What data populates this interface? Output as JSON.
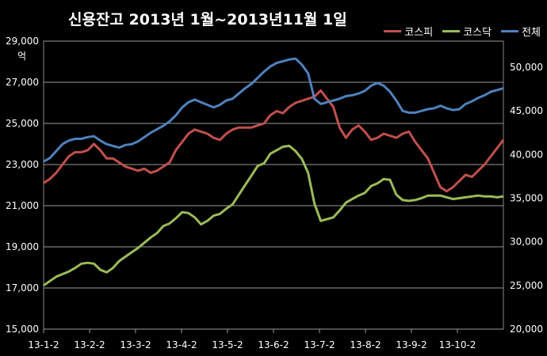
{
  "chart_data": {
    "type": "line",
    "title": "신용잔고 2013년 1월~2013년11월 1일",
    "left_unit": "억",
    "y_left": {
      "min": 15000,
      "max": 29000,
      "ticks": [
        "15,000",
        "17,000",
        "19,000",
        "21,000",
        "23,000",
        "25,000",
        "27,000",
        "29,000"
      ]
    },
    "y_right": {
      "min": 20000,
      "max": 53000,
      "ticks": [
        "20,000",
        "25,000",
        "30,000",
        "35,000",
        "40,000",
        "45,000",
        "50,000"
      ]
    },
    "x_ticks": [
      "13-1-2",
      "13-2-2",
      "13-3-2",
      "13-4-2",
      "13-5-2",
      "13-6-2",
      "13-7-2",
      "13-8-2",
      "13-9-2",
      "13-10-2"
    ],
    "grid": true,
    "legend_position": "top-right",
    "series": [
      {
        "name": "코스피",
        "axis": "left",
        "color": "#c0504d",
        "values": [
          22100,
          22300,
          22600,
          23000,
          23400,
          23600,
          23600,
          23700,
          24000,
          23700,
          23300,
          23300,
          23100,
          22900,
          22800,
          22700,
          22800,
          22600,
          22700,
          22900,
          23100,
          23700,
          24100,
          24500,
          24700,
          24600,
          24500,
          24300,
          24200,
          24500,
          24700,
          24800,
          24800,
          24800,
          24900,
          25000,
          25400,
          25600,
          25500,
          25800,
          26000,
          26100,
          26200,
          26300,
          26600,
          26200,
          25800,
          24800,
          24300,
          24700,
          24900,
          24600,
          24200,
          24300,
          24500,
          24400,
          24300,
          24500,
          24600,
          24100,
          23700,
          23300,
          22600,
          21900,
          21700,
          21900,
          22200,
          22500,
          22400,
          22700,
          23000,
          23400,
          23800,
          24200
        ]
      },
      {
        "name": "코스닥",
        "axis": "right",
        "color": "#9bbb59",
        "values": [
          25000,
          25500,
          26000,
          26300,
          26600,
          27000,
          27500,
          27600,
          27500,
          26800,
          26500,
          27000,
          27800,
          28300,
          28800,
          29300,
          29900,
          30500,
          31000,
          31800,
          32100,
          32700,
          33400,
          33300,
          32800,
          32000,
          32400,
          33000,
          33200,
          33800,
          34300,
          35400,
          36500,
          37600,
          38700,
          39000,
          40100,
          40500,
          40900,
          41000,
          40400,
          39500,
          37900,
          34400,
          32400,
          32600,
          32800,
          33600,
          34500,
          34900,
          35300,
          35600,
          36400,
          36700,
          37200,
          37100,
          35400,
          34800,
          34700,
          34800,
          35000,
          35300,
          35300,
          35300,
          35100,
          34900,
          35000,
          35100,
          35200,
          35300,
          35200,
          35200,
          35100,
          35200
        ]
      },
      {
        "name": "전체",
        "axis": "right",
        "color": "#4f81bd",
        "values": [
          39200,
          39600,
          40400,
          41200,
          41600,
          41800,
          41800,
          42000,
          42100,
          41600,
          41200,
          41000,
          40800,
          41100,
          41200,
          41500,
          42000,
          42500,
          42900,
          43300,
          43800,
          44500,
          45400,
          46000,
          46300,
          46000,
          45700,
          45400,
          45700,
          46200,
          46400,
          47000,
          47600,
          48100,
          48800,
          49500,
          50100,
          50500,
          50700,
          50900,
          51000,
          50300,
          49300,
          46400,
          45800,
          46000,
          46200,
          46400,
          46700,
          46800,
          47000,
          47300,
          47900,
          48200,
          47900,
          47200,
          46200,
          45000,
          44800,
          44800,
          45000,
          45200,
          45300,
          45600,
          45300,
          45100,
          45200,
          45800,
          46100,
          46500,
          46800,
          47200,
          47400,
          47600
        ]
      }
    ]
  }
}
